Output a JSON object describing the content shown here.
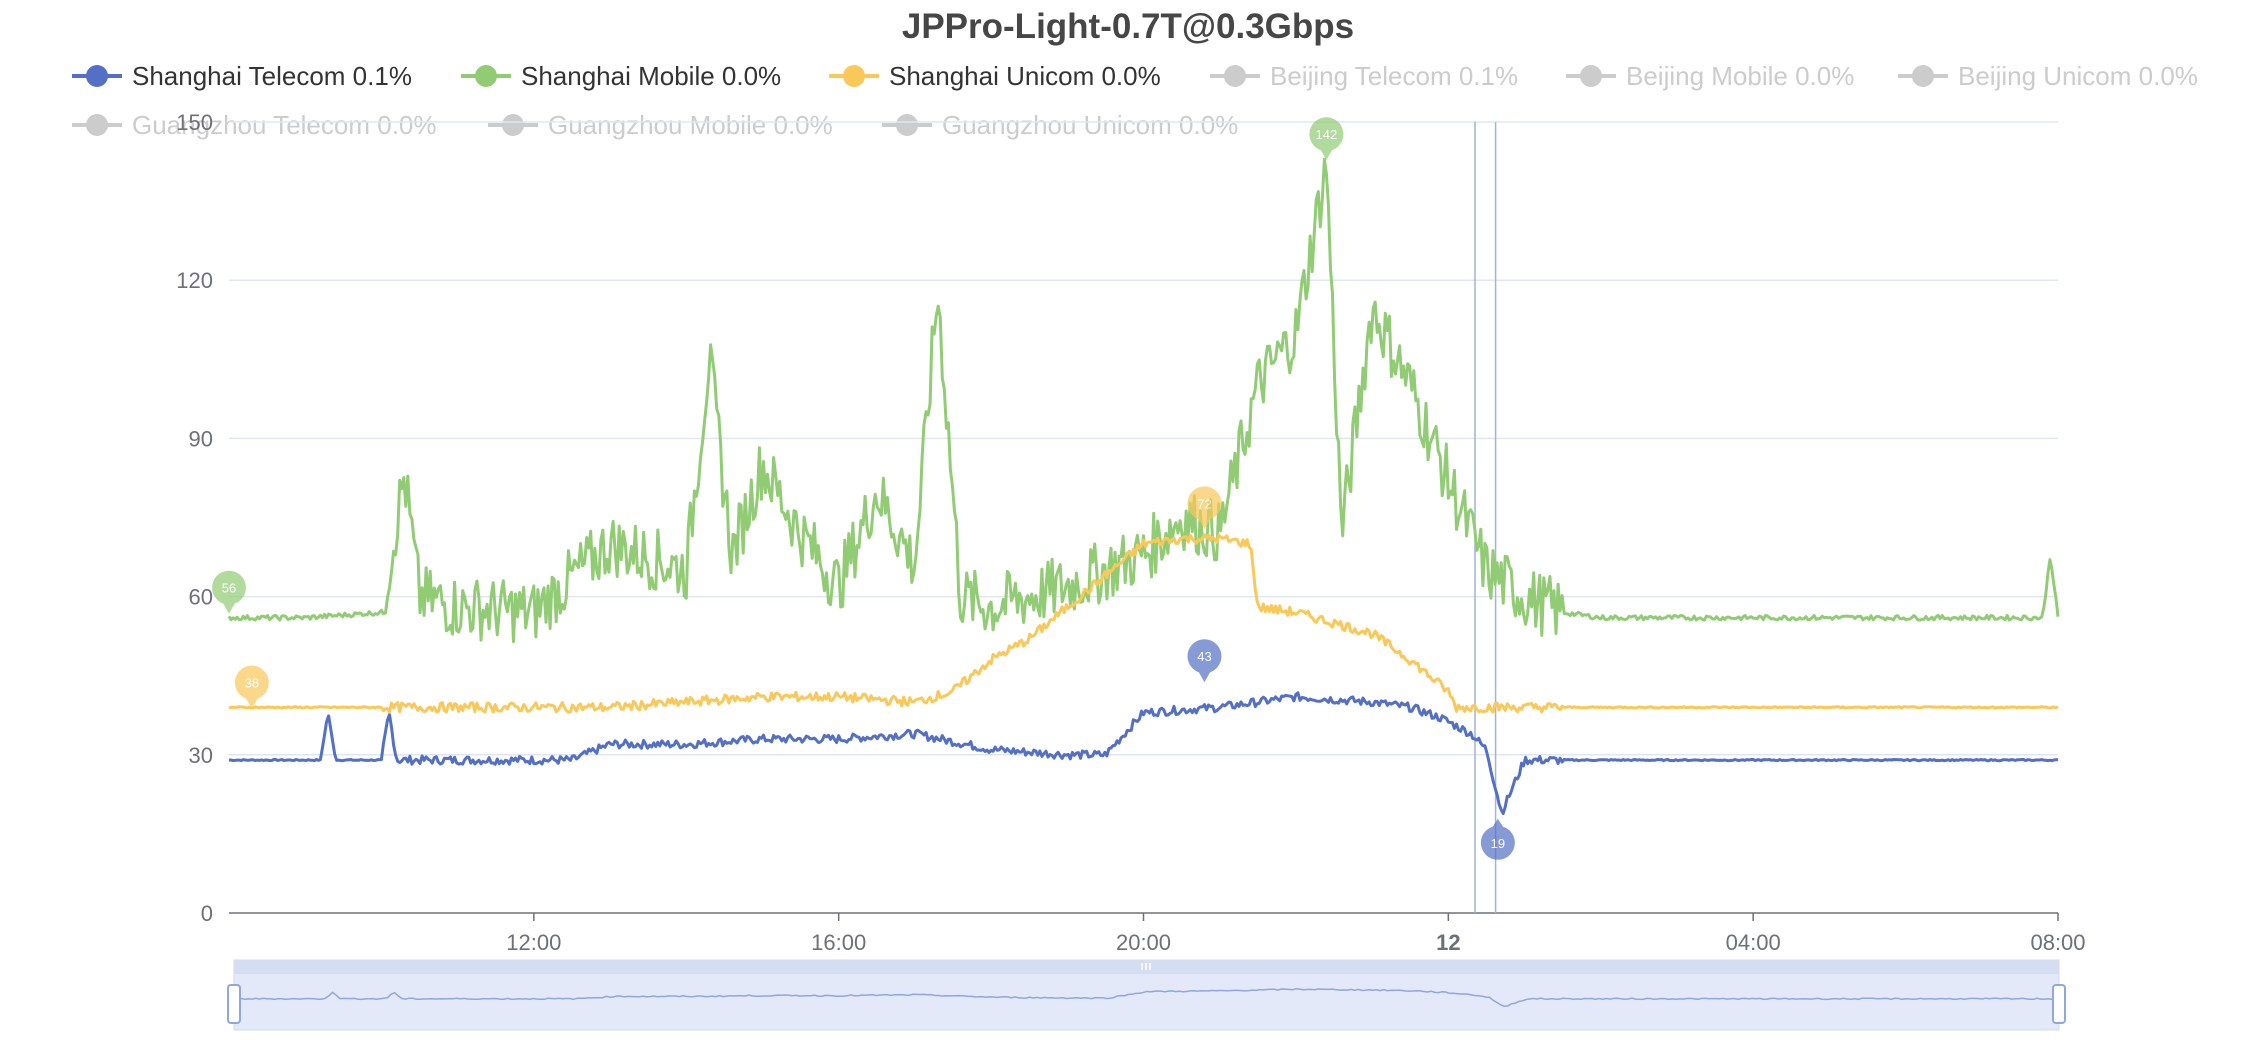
{
  "chart_data": {
    "type": "line",
    "title": "JPPro-Light-0.7T@0.3Gbps",
    "x_tick_labels": [
      "12:00",
      "16:00",
      "20:00",
      "12",
      "04:00",
      "08:00"
    ],
    "y_tick_labels": [
      "0",
      "30",
      "60",
      "90",
      "120",
      "150"
    ],
    "ylim": [
      0,
      150
    ],
    "grid": "horizontal",
    "legend_position": "top",
    "legend": [
      {
        "label": "Shanghai Telecom 0.1%",
        "color": "#5470c6",
        "active": true
      },
      {
        "label": "Shanghai Mobile 0.0%",
        "color": "#91cc75",
        "active": true
      },
      {
        "label": "Shanghai Unicom 0.0%",
        "color": "#fac858",
        "active": true
      },
      {
        "label": "Beijing Telecom 0.1%",
        "color": "#cccccc",
        "active": false
      },
      {
        "label": "Beijing Mobile 0.0%",
        "color": "#cccccc",
        "active": false
      },
      {
        "label": "Beijing Unicom 0.0%",
        "color": "#cccccc",
        "active": false
      },
      {
        "label": "Guangzhou Telecom 0.0%",
        "color": "#cccccc",
        "active": false
      },
      {
        "label": "Guangzhou Mobile 0.0%",
        "color": "#cccccc",
        "active": false
      },
      {
        "label": "Guangzhou Unicom 0.0%",
        "color": "#cccccc",
        "active": false
      }
    ],
    "x_unit_note_hours": "x values are hours of the shown period, ticks at 12:00, 16:00, 20:00, 12, 04:00, 08:00",
    "series": [
      {
        "name": "Shanghai Telecom 0.1%",
        "color": "#5470c6",
        "x": [
          8.0,
          9.2,
          9.3,
          9.4,
          10.0,
          10.1,
          10.2,
          11.0,
          12.0,
          12.5,
          13.0,
          14.0,
          15.0,
          16.0,
          17.0,
          18.0,
          19.0,
          19.5,
          20.0,
          21.0,
          22.0,
          23.0,
          23.5,
          23.9,
          24.3,
          24.5,
          24.7,
          25.0,
          26.0,
          28.0,
          30.0,
          32.0
        ],
        "y": [
          29,
          29,
          38,
          29,
          29,
          38,
          29,
          29,
          29,
          29,
          32,
          32,
          33,
          33,
          34,
          31,
          30,
          30,
          38,
          39,
          41,
          40,
          39,
          37,
          34,
          31,
          19,
          29,
          29,
          29,
          29,
          29
        ],
        "markers": [
          {
            "label": "43",
            "x": 20.8,
            "y": 43
          },
          {
            "label": "19",
            "x": 24.65,
            "y": 19
          }
        ]
      },
      {
        "name": "Shanghai Mobile 0.0%",
        "color": "#91cc75",
        "x": [
          8.0,
          9.0,
          10.0,
          10.3,
          10.5,
          11.0,
          12.0,
          13.0,
          14.0,
          14.3,
          14.6,
          15.0,
          15.5,
          16.0,
          16.5,
          17.0,
          17.3,
          17.6,
          18.0,
          19.0,
          20.0,
          20.5,
          21.0,
          21.5,
          22.0,
          22.4,
          22.6,
          23.0,
          23.5,
          24.0,
          24.5,
          25.0,
          25.5,
          26.0,
          28.0,
          30.0,
          31.8,
          31.9,
          32.0
        ],
        "y": [
          56,
          56,
          57,
          83,
          60,
          58,
          57,
          70,
          65,
          105,
          68,
          85,
          72,
          62,
          80,
          66,
          118,
          60,
          58,
          62,
          68,
          75,
          72,
          100,
          110,
          142,
          72,
          115,
          100,
          82,
          65,
          60,
          57,
          56,
          56,
          56,
          56,
          68,
          56
        ],
        "markers": [
          {
            "label": "56",
            "x": 8.0,
            "y": 56
          },
          {
            "label": "142",
            "x": 22.4,
            "y": 142
          }
        ]
      },
      {
        "name": "Shanghai Unicom 0.0%",
        "color": "#fac858",
        "x": [
          8.0,
          10.0,
          12.0,
          13.0,
          14.0,
          15.0,
          16.0,
          17.0,
          17.5,
          18.0,
          18.5,
          19.0,
          19.5,
          20.0,
          20.5,
          21.0,
          21.4,
          21.5,
          22.0,
          22.5,
          23.0,
          23.5,
          24.0,
          24.1,
          25.0,
          26.0,
          27.0,
          28.0,
          30.0,
          32.0
        ],
        "y": [
          39,
          39,
          39,
          39,
          40,
          41,
          41,
          40,
          42,
          48,
          52,
          58,
          64,
          70,
          71,
          71,
          70,
          58,
          57,
          55,
          53,
          48,
          42,
          39,
          39,
          39,
          39,
          39,
          39,
          39
        ],
        "markers": [
          {
            "label": "38",
            "x": 8.3,
            "y": 38
          },
          {
            "label": "72",
            "x": 20.8,
            "y": 72
          }
        ]
      }
    ]
  }
}
